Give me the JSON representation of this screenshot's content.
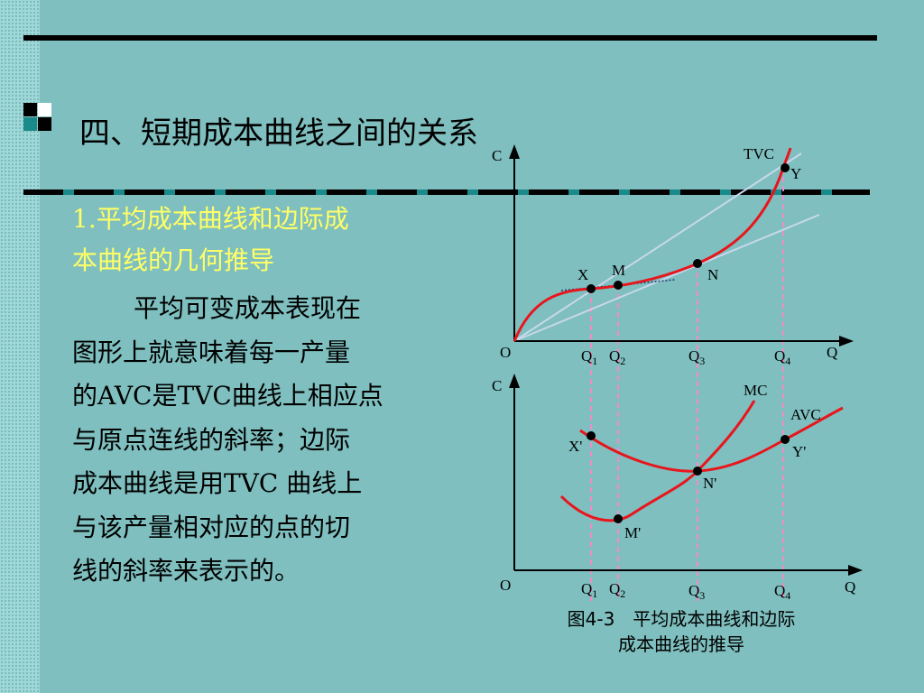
{
  "title": "四、短期成本曲线之间的关系",
  "subtitle": {
    "line1": "1.平均成本曲线和边际成",
    "line2": "本曲线的几何推导"
  },
  "paragraph": [
    "平均可变成本表现在",
    "图形上就意味着每一产量",
    "的AVC是TVC曲线上相应点",
    "与原点连线的斜率；边际",
    "成本曲线是用TVC 曲线上",
    "与该产量相对应的点的切",
    "线的斜率来表示的。"
  ],
  "caption": {
    "line1": "图4-3　平均成本曲线和边际",
    "line2": "成本曲线的推导"
  },
  "colors": {
    "background": "#7fbfbf",
    "heading_accent": "#ffff66",
    "curve": "#e8161c",
    "guide": "#f08cc8",
    "ray": "#c8d8ec"
  },
  "diagram": {
    "top": {
      "y_axis": "C",
      "x_axis": "Q",
      "origin": "O",
      "curve_label": "TVC",
      "points": [
        "X",
        "M",
        "N",
        "Y"
      ],
      "ticks": [
        "Q1",
        "Q2",
        "Q3",
        "Q4"
      ]
    },
    "bottom": {
      "y_axis": "C",
      "x_axis": "Q",
      "origin": "O",
      "curve_labels": [
        "MC",
        "AVC"
      ],
      "points": [
        "X'",
        "M'",
        "N'",
        "Y'"
      ],
      "ticks": [
        "Q1",
        "Q2",
        "Q3",
        "Q4"
      ]
    }
  }
}
